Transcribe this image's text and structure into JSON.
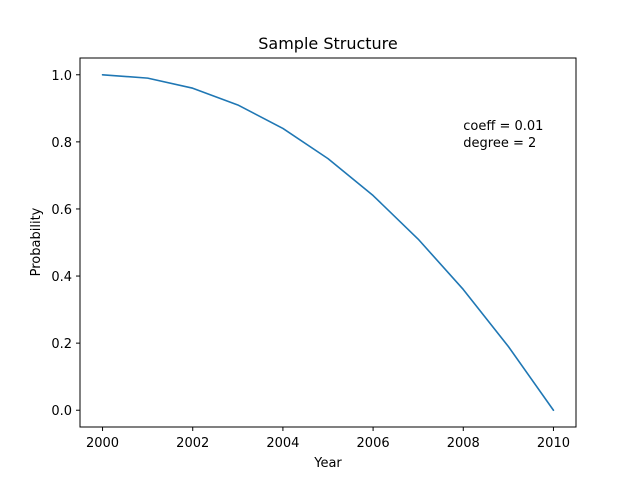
{
  "chart_data": {
    "type": "line",
    "title": "Sample Structure",
    "xlabel": "Year",
    "ylabel": "Probability",
    "xlim": [
      1999.5,
      2010.5
    ],
    "ylim": [
      -0.05,
      1.05
    ],
    "x_ticks": [
      2000,
      2002,
      2004,
      2006,
      2008,
      2010
    ],
    "x_tick_labels": [
      "2000",
      "2002",
      "2004",
      "2006",
      "2008",
      "2010"
    ],
    "y_ticks": [
      0.0,
      0.2,
      0.4,
      0.6,
      0.8,
      1.0
    ],
    "y_tick_labels": [
      "0.0",
      "0.2",
      "0.4",
      "0.6",
      "0.8",
      "1.0"
    ],
    "grid": false,
    "series": [
      {
        "color": "#1f77b4",
        "x": [
          2000,
          2001,
          2002,
          2003,
          2004,
          2005,
          2006,
          2007,
          2008,
          2009,
          2010
        ],
        "y": [
          1.0,
          0.99,
          0.96,
          0.91,
          0.84,
          0.75,
          0.64,
          0.51,
          0.36,
          0.19,
          0.0
        ]
      }
    ],
    "annotations": [
      {
        "lines": [
          "coeff = 0.01",
          "degree = 2"
        ],
        "x": 2008,
        "y": 0.8
      }
    ]
  }
}
